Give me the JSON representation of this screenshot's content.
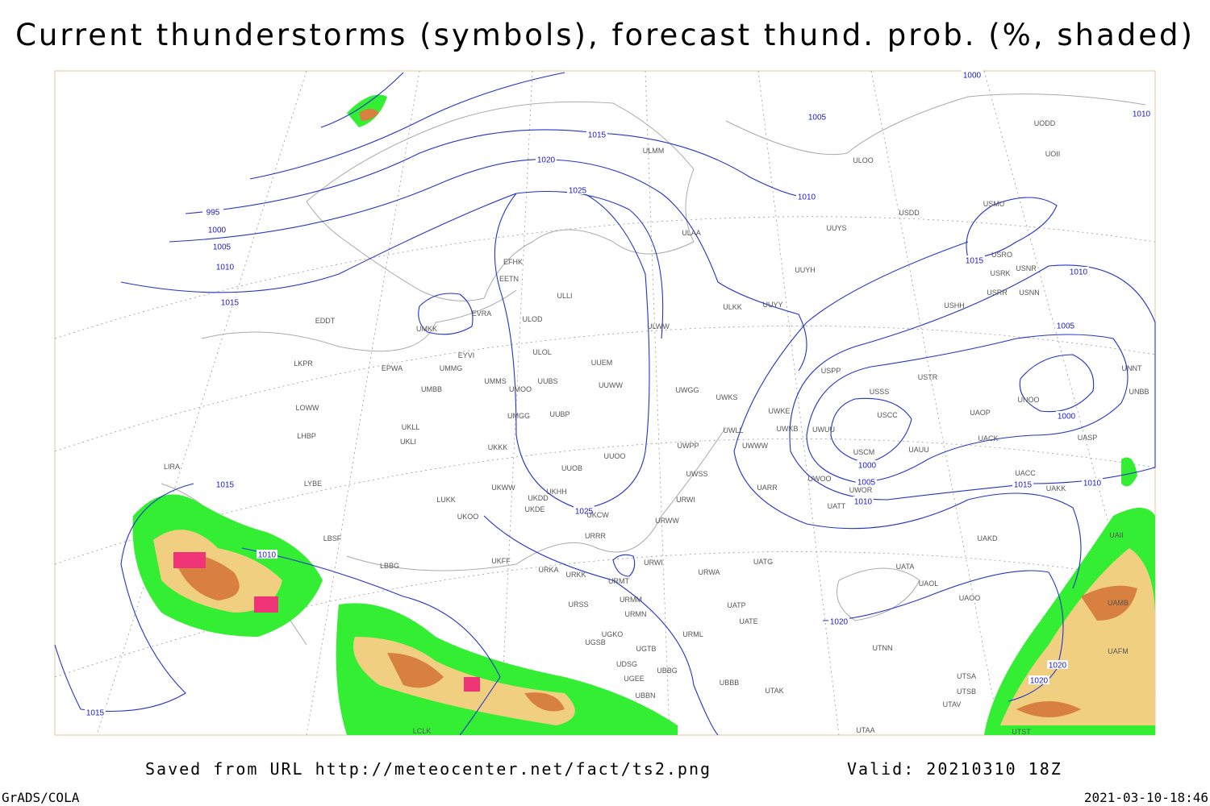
{
  "title": "Current thunderstorms (symbols), forecast thund. prob. (%, shaded)",
  "isobar_labels": [
    1000,
    1010,
    1005,
    1015,
    1020,
    1010,
    1025,
    995,
    1000,
    1005,
    1010,
    1015,
    1015,
    1010,
    1005,
    1000,
    1000,
    1005,
    1010,
    1015,
    1010,
    1025,
    1015,
    1010,
    1020,
    1020,
    1020,
    1015
  ],
  "stations": [
    "UODD",
    "UOII",
    "ULOO",
    "ULMM",
    "USDD",
    "USMU",
    "UUYS",
    "ULAA",
    "USRO",
    "USRK",
    "USNR",
    "UUYH",
    "USRR",
    "USNN",
    "EFHK",
    "EETN",
    "ULLI",
    "USHH",
    "ULKK",
    "UUYY",
    "EVRA",
    "ULOD",
    "UMKK",
    "EDDT",
    "ULWW",
    "UUEM",
    "ULOL",
    "EYVI",
    "LKPR",
    "EPWA",
    "UMMG",
    "UUWW",
    "UMMS",
    "UMOO",
    "UUBS",
    "UWGG",
    "UWKS",
    "USPP",
    "USTR",
    "UNNT",
    "UNBB",
    "UMBB",
    "USSS",
    "LOWW",
    "UUBP",
    "UMGG",
    "UWKE",
    "UWKB",
    "USCC",
    "UWUU",
    "UAOP",
    "UNOO",
    "UKLL",
    "UKLI",
    "LHBP",
    "UWLL",
    "UWWW",
    "UACK",
    "UASP",
    "UKKK",
    "USCM",
    "UAUU",
    "UWPP",
    "UUOO",
    "UUOB",
    "UWSS",
    "LIRA",
    "LYBE",
    "UKHH",
    "UKWW",
    "UARR",
    "UWOO",
    "UWOR",
    "UACC",
    "UAKK",
    "LUKK",
    "UKDD",
    "URWI",
    "UATT",
    "UKOO",
    "UKDE",
    "UKCW",
    "URWW",
    "LBSF",
    "URRR",
    "UAKD",
    "UAII",
    "UKFF",
    "LBBG",
    "UATG",
    "URWI",
    "URKA",
    "URKK",
    "UATA",
    "URWA",
    "URMT",
    "UAOL",
    "URMM",
    "URSS",
    "UAOO",
    "UATP",
    "UAMB",
    "URMN",
    "UATE",
    "URML",
    "UGKO",
    "UGSB",
    "UTNN",
    "UGTB",
    "UAFM",
    "UDSG",
    "UBBG",
    "UBBB",
    "UTAK",
    "UTSA",
    "UTSB",
    "UBBN",
    "UTAV",
    "UTAA",
    "LCLK",
    "UTST",
    "UGEE"
  ],
  "footer": {
    "source": "Saved from URL http://meteocenter.net/fact/ts2.png",
    "valid": "Valid: 20210310 18Z",
    "software": "GrADS/COLA",
    "timestamp": "2021-03-10-18:46"
  }
}
